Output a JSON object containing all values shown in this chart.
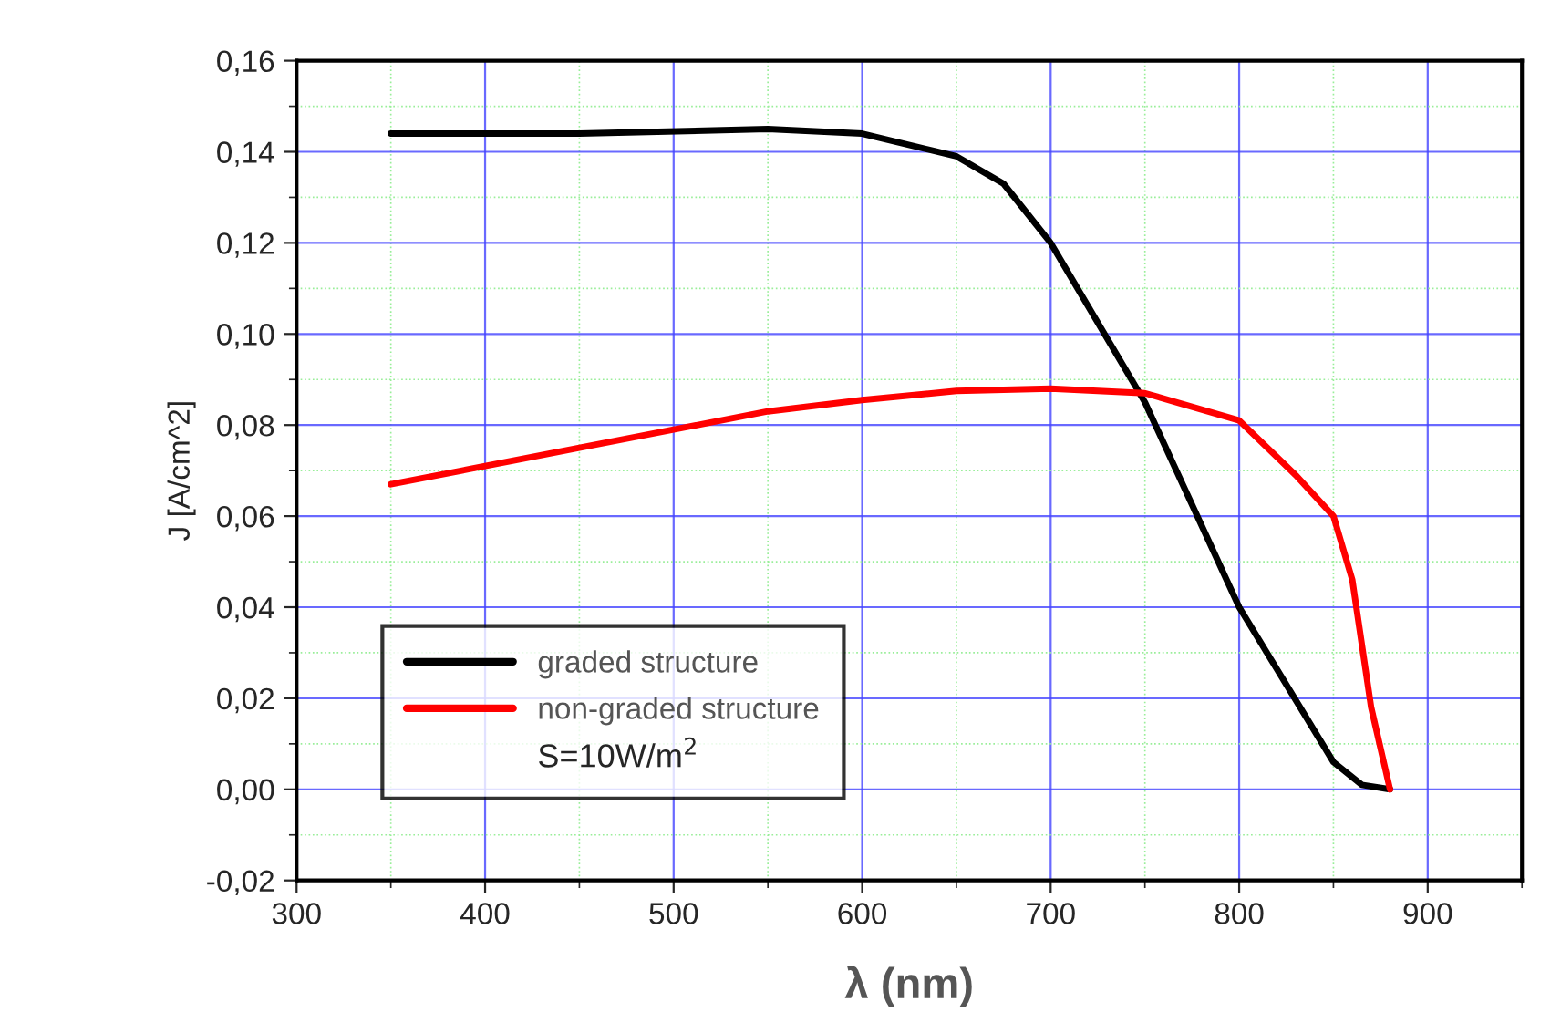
{
  "chart_data": {
    "type": "line",
    "xlabel": "λ (nm)",
    "ylabel": "J [A/cm^2]",
    "xlim": [
      300,
      950
    ],
    "xticks": [
      300,
      {
        "value": 350,
        "label": null
      },
      400,
      {
        "value": 450,
        "label": null
      },
      500,
      {
        "value": 550,
        "label": null
      },
      600,
      {
        "value": 650,
        "label": null
      },
      700,
      {
        "value": 750,
        "label": null
      },
      800,
      {
        "value": 850,
        "label": null
      },
      900,
      {
        "value": 950,
        "label": null
      }
    ],
    "ylim": [
      -0.02,
      0.16
    ],
    "yticks": [
      {
        "value": -0.02,
        "label": "-0,02"
      },
      {
        "value": -0.01,
        "label": null
      },
      {
        "value": 0.0,
        "label": "0,00"
      },
      {
        "value": 0.01,
        "label": null
      },
      {
        "value": 0.02,
        "label": "0,02"
      },
      {
        "value": 0.03,
        "label": null
      },
      {
        "value": 0.04,
        "label": "0,04"
      },
      {
        "value": 0.05,
        "label": null
      },
      {
        "value": 0.06,
        "label": "0,06"
      },
      {
        "value": 0.07,
        "label": null
      },
      {
        "value": 0.08,
        "label": "0,08"
      },
      {
        "value": 0.09,
        "label": null
      },
      {
        "value": 0.1,
        "label": "0,10"
      },
      {
        "value": 0.11,
        "label": null
      },
      {
        "value": 0.12,
        "label": "0,12"
      },
      {
        "value": 0.13,
        "label": null
      },
      {
        "value": 0.14,
        "label": "0,14"
      },
      {
        "value": 0.15,
        "label": null
      },
      {
        "value": 0.16,
        "label": "0,16"
      }
    ],
    "grid": true,
    "legend": "bottom left",
    "marker": "none",
    "line_style": "solid",
    "annotations": [
      "S=10W/m$^{2}$"
    ],
    "series": [
      {
        "name": "graded structure",
        "color": "#000000",
        "x": [
          350,
          450,
          550,
          600,
          650,
          675,
          700,
          750,
          800,
          850,
          865,
          880
        ],
        "values": [
          0.144,
          0.144,
          0.145,
          0.144,
          0.139,
          0.133,
          0.12,
          0.085,
          0.04,
          0.006,
          0.001,
          0.0
        ]
      },
      {
        "name": "non-graded structure",
        "color": "#ff0000",
        "x": [
          350,
          400,
          450,
          500,
          550,
          600,
          650,
          700,
          750,
          800,
          830,
          850,
          860,
          870,
          880
        ],
        "values": [
          0.067,
          0.071,
          0.075,
          0.079,
          0.083,
          0.0855,
          0.0875,
          0.088,
          0.087,
          0.081,
          0.069,
          0.06,
          0.046,
          0.018,
          0.0
        ]
      }
    ]
  }
}
